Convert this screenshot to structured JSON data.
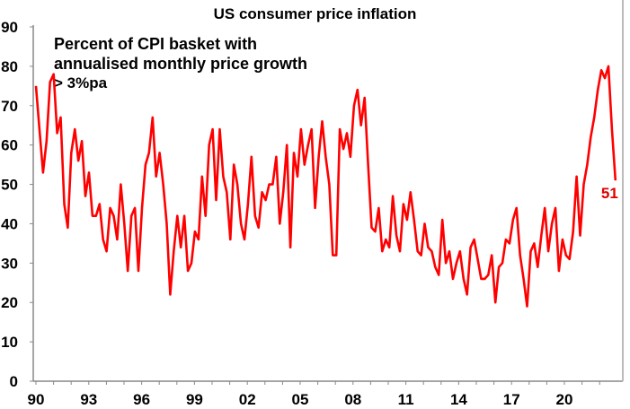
{
  "chart_data": {
    "type": "line",
    "title": "US consumer price inflation",
    "annotation": [
      "Percent of CPI basket with",
      "annualised monthly price growth",
      "> 3%pa"
    ],
    "xlabel": "",
    "ylabel": "",
    "ylim": [
      0,
      90
    ],
    "xlim": [
      1990,
      2023
    ],
    "yticks": [
      "0",
      "10",
      "20",
      "30",
      "40",
      "50",
      "60",
      "70",
      "80",
      "90"
    ],
    "xticks": [
      {
        "year": 1990,
        "label": "90"
      },
      {
        "year": 1993,
        "label": "93"
      },
      {
        "year": 1996,
        "label": "96"
      },
      {
        "year": 1999,
        "label": "99"
      },
      {
        "year": 2002,
        "label": "02"
      },
      {
        "year": 2005,
        "label": "05"
      },
      {
        "year": 2008,
        "label": "08"
      },
      {
        "year": 2011,
        "label": "11"
      },
      {
        "year": 2014,
        "label": "14"
      },
      {
        "year": 2017,
        "label": "17"
      },
      {
        "year": 2020,
        "label": "20"
      }
    ],
    "grid": false,
    "series": [
      {
        "name": "Percent of CPI basket with annualised monthly price growth > 3%pa",
        "color": "#ff0000",
        "x_start": 1990.0,
        "x_end": 2022.9,
        "values": [
          75,
          64,
          53,
          61,
          76,
          78,
          63,
          67,
          45,
          39,
          58,
          64,
          56,
          61,
          47,
          53,
          42,
          42,
          45,
          36,
          33,
          44,
          42,
          36,
          50,
          40,
          28,
          42,
          44,
          28,
          44,
          55,
          58,
          67,
          52,
          58,
          50,
          40,
          22,
          33,
          42,
          34,
          42,
          28,
          30,
          38,
          36,
          52,
          42,
          60,
          64,
          46,
          64,
          52,
          48,
          36,
          55,
          50,
          40,
          36,
          45,
          57,
          42,
          39,
          48,
          46,
          50,
          50,
          57,
          40,
          48,
          60,
          34,
          58,
          52,
          64,
          55,
          60,
          64,
          44,
          57,
          66,
          57,
          50,
          32,
          32,
          64,
          59,
          63,
          57,
          70,
          74,
          65,
          72,
          55,
          39,
          38,
          44,
          33,
          36,
          34,
          47,
          37,
          33,
          45,
          41,
          48,
          41,
          33,
          32,
          40,
          34,
          33,
          29,
          27,
          41,
          30,
          33,
          26,
          30,
          33,
          26,
          22,
          34,
          36,
          31,
          26,
          26,
          27,
          32,
          20,
          29,
          30,
          36,
          35,
          41,
          44,
          32,
          26,
          19,
          33,
          35,
          29,
          37,
          44,
          33,
          40,
          44,
          28,
          36,
          32,
          31,
          38,
          52,
          37,
          50,
          55,
          62,
          67,
          74,
          79,
          77,
          80,
          64,
          51
        ]
      }
    ],
    "end_label": "51"
  }
}
